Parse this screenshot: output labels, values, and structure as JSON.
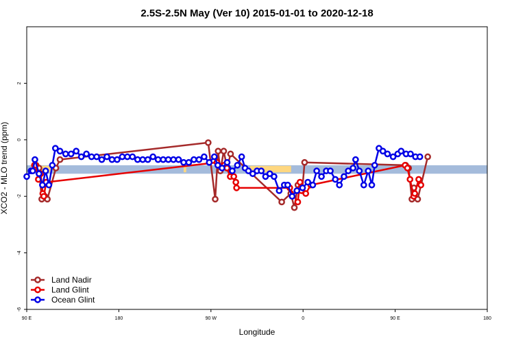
{
  "chart_data": {
    "type": "line",
    "title": "2.5S-2.5N May (Ver 10)   2015-01-01 to 2020-12-18",
    "xlabel": "Longitude",
    "ylabel": "XCO2 - MLO trend (ppm)",
    "xlim": [
      -90,
      180
    ],
    "ylim": [
      -6,
      4
    ],
    "x_ticks": [
      {
        "value": -90,
        "label": "90 E"
      },
      {
        "value": -36,
        "label": "180"
      },
      {
        "value": 18,
        "label": "90 W"
      },
      {
        "value": 72,
        "label": "0"
      },
      {
        "value": 126,
        "label": "90 E"
      },
      {
        "value": 180,
        "label": "180"
      }
    ],
    "y_ticks": [
      {
        "value": -6,
        "label": "-6"
      },
      {
        "value": -4,
        "label": "-4"
      },
      {
        "value": -2,
        "label": "-2"
      },
      {
        "value": 0,
        "label": "0"
      },
      {
        "value": 2,
        "label": "2"
      }
    ],
    "bands": [
      {
        "name": "ocean",
        "color": "#a4bbdb",
        "y_low": -1.2,
        "y_high": -0.9,
        "segments": [
          [
            -90,
            180
          ]
        ]
      },
      {
        "name": "land",
        "color": "#fed780",
        "y_low": -1.15,
        "y_high": -0.92,
        "segments": [
          [
            -83.3,
            -76
          ],
          [
            55.2,
            58
          ],
          [
            2.0,
            3.5
          ],
          [
            41,
            65
          ]
        ]
      }
    ],
    "legend": {
      "position": "bottom-left"
    },
    "series": [
      {
        "name": "Land Nadir",
        "color": "#a52a2a",
        "points": [
          [
            -84.5,
            -0.9
          ],
          [
            -82.8,
            -1.0
          ],
          [
            -81.2,
            -2.1
          ],
          [
            -79.4,
            -2.0
          ],
          [
            -77.9,
            -2.1
          ],
          [
            -72.9,
            -1.0
          ],
          [
            -70.5,
            -0.7
          ],
          [
            16.4,
            -0.1
          ],
          [
            20.5,
            -2.1
          ],
          [
            22.2,
            -0.4
          ],
          [
            23.5,
            -1.1
          ],
          [
            25.5,
            -0.4
          ],
          [
            27.5,
            -1.0
          ],
          [
            29.5,
            -0.5
          ],
          [
            59.5,
            -2.2
          ],
          [
            64.8,
            -1.9
          ],
          [
            66.9,
            -2.4
          ],
          [
            69.0,
            -1.6
          ],
          [
            71.5,
            -1.8
          ],
          [
            72.9,
            -0.8
          ],
          [
            132.2,
            -0.9
          ],
          [
            133.9,
            -1.0
          ],
          [
            135.8,
            -2.1
          ],
          [
            137.0,
            -1.7
          ],
          [
            139.2,
            -2.1
          ],
          [
            145.1,
            -0.6
          ]
        ]
      },
      {
        "name": "Land Glint",
        "color": "#e60000",
        "points": [
          [
            -85.5,
            -0.9
          ],
          [
            -84.8,
            -0.9
          ],
          [
            -83.2,
            -1.4
          ],
          [
            -81.8,
            -1.2
          ],
          [
            -80.6,
            -1.9
          ],
          [
            -80.0,
            -2.0
          ],
          [
            -78.6,
            -1.5
          ],
          [
            21.5,
            -0.8
          ],
          [
            25.8,
            -0.9
          ],
          [
            27.4,
            -1.0
          ],
          [
            29.3,
            -1.3
          ],
          [
            31.4,
            -1.3
          ],
          [
            32.6,
            -1.5
          ],
          [
            33.0,
            -1.7
          ],
          [
            64.2,
            -1.7
          ],
          [
            68.9,
            -2.2
          ],
          [
            70.2,
            -1.5
          ],
          [
            70.6,
            -1.7
          ],
          [
            71.0,
            -1.8
          ],
          [
            73.6,
            -1.9
          ],
          [
            76.5,
            -1.6
          ],
          [
            131.8,
            -0.9
          ],
          [
            133.2,
            -1.0
          ],
          [
            134.7,
            -1.4
          ],
          [
            136.9,
            -2.0
          ],
          [
            137.5,
            -1.9
          ],
          [
            139.8,
            -1.4
          ],
          [
            141.1,
            -1.6
          ]
        ]
      },
      {
        "name": "Ocean Glint",
        "color": "#0000e6",
        "points": [
          [
            -90,
            -1.3
          ],
          [
            -87.5,
            -1.1
          ],
          [
            -86.5,
            -1.1
          ],
          [
            -85.2,
            -0.7
          ],
          [
            -82.8,
            -1.2
          ],
          [
            -80.8,
            -1.6
          ],
          [
            -78.9,
            -1.1
          ],
          [
            -77.0,
            -1.6
          ],
          [
            -75.0,
            -0.9
          ],
          [
            -73.2,
            -0.3
          ],
          [
            -70.5,
            -0.4
          ],
          [
            -67.2,
            -0.5
          ],
          [
            -64.0,
            -0.5
          ],
          [
            -61.0,
            -0.4
          ],
          [
            -58.0,
            -0.6
          ],
          [
            -55.0,
            -0.5
          ],
          [
            -52.0,
            -0.6
          ],
          [
            -49.0,
            -0.6
          ],
          [
            -46.0,
            -0.7
          ],
          [
            -43.0,
            -0.6
          ],
          [
            -40.0,
            -0.7
          ],
          [
            -37.0,
            -0.7
          ],
          [
            -34.0,
            -0.6
          ],
          [
            -31.0,
            -0.6
          ],
          [
            -28.0,
            -0.6
          ],
          [
            -25.0,
            -0.7
          ],
          [
            -22.0,
            -0.7
          ],
          [
            -19.0,
            -0.7
          ],
          [
            -16.0,
            -0.6
          ],
          [
            -13.0,
            -0.7
          ],
          [
            -10.0,
            -0.7
          ],
          [
            -7.0,
            -0.7
          ],
          [
            -4.0,
            -0.7
          ],
          [
            -1.0,
            -0.7
          ],
          [
            2.0,
            -0.8
          ],
          [
            5.0,
            -0.8
          ],
          [
            8.0,
            -0.7
          ],
          [
            11.0,
            -0.7
          ],
          [
            14.0,
            -0.6
          ],
          [
            17.0,
            -0.8
          ],
          [
            20.0,
            -0.6
          ],
          [
            22.0,
            -0.9
          ],
          [
            24.5,
            -1.0
          ],
          [
            27.5,
            -0.8
          ],
          [
            30.5,
            -1.1
          ],
          [
            33.5,
            -0.9
          ],
          [
            36.0,
            -0.6
          ],
          [
            38.0,
            -1.0
          ],
          [
            40.0,
            -1.1
          ],
          [
            42.5,
            -1.2
          ],
          [
            45.0,
            -1.1
          ],
          [
            47.5,
            -1.1
          ],
          [
            50.0,
            -1.3
          ],
          [
            52.5,
            -1.2
          ],
          [
            55.0,
            -1.3
          ],
          [
            58.0,
            -1.8
          ],
          [
            61.0,
            -1.6
          ],
          [
            63.0,
            -1.6
          ],
          [
            65.6,
            -2.0
          ],
          [
            68.4,
            -1.8
          ],
          [
            71.7,
            -1.7
          ],
          [
            74.8,
            -1.5
          ],
          [
            77.7,
            -1.6
          ],
          [
            80.0,
            -1.1
          ],
          [
            82.8,
            -1.3
          ],
          [
            85.6,
            -1.1
          ],
          [
            88.0,
            -1.1
          ],
          [
            90.9,
            -1.4
          ],
          [
            93.3,
            -1.6
          ],
          [
            96.0,
            -1.3
          ],
          [
            98.5,
            -1.1
          ],
          [
            101.3,
            -1.0
          ],
          [
            102.8,
            -0.7
          ],
          [
            105.0,
            -1.1
          ],
          [
            107.6,
            -1.6
          ],
          [
            110.2,
            -1.1
          ],
          [
            112.3,
            -1.6
          ],
          [
            114.0,
            -0.9
          ],
          [
            116.5,
            -0.3
          ],
          [
            118.8,
            -0.4
          ],
          [
            121.5,
            -0.5
          ],
          [
            124.8,
            -0.6
          ],
          [
            127.5,
            -0.5
          ],
          [
            129.5,
            -0.4
          ],
          [
            132.4,
            -0.5
          ],
          [
            135.0,
            -0.5
          ],
          [
            137.9,
            -0.6
          ],
          [
            140.5,
            -0.6
          ]
        ]
      }
    ]
  }
}
